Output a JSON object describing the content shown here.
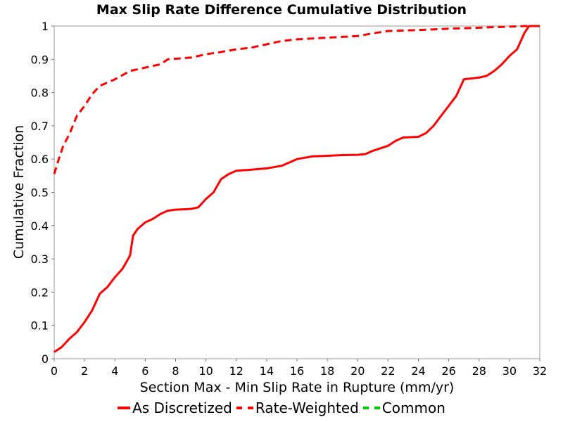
{
  "chart_data": {
    "type": "line",
    "title": "Max Slip Rate Difference Cumulative Distribution",
    "xlabel": "Section Max - Min Slip Rate in Rupture (mm/yr)",
    "ylabel": "Cumulative Fraction",
    "xlim": [
      0,
      32
    ],
    "ylim": [
      0,
      1
    ],
    "xticks": [
      "0",
      "2",
      "4",
      "6",
      "8",
      "10",
      "12",
      "14",
      "16",
      "18",
      "20",
      "22",
      "24",
      "26",
      "28",
      "30",
      "32"
    ],
    "yticks": [
      "0",
      "0.1",
      "0.2",
      "0.3",
      "0.4",
      "0.5",
      "0.6",
      "0.7",
      "0.8",
      "0.9",
      "1"
    ],
    "grid": false,
    "legend_position": "bottom",
    "series": [
      {
        "name": "As Discretized",
        "style": "solid",
        "color": "#ff0000",
        "points": [
          [
            0,
            0.02
          ],
          [
            0.5,
            0.035
          ],
          [
            1,
            0.06
          ],
          [
            1.5,
            0.08
          ],
          [
            2,
            0.11
          ],
          [
            2.5,
            0.145
          ],
          [
            3,
            0.195
          ],
          [
            3.5,
            0.215
          ],
          [
            4,
            0.245
          ],
          [
            4.5,
            0.27
          ],
          [
            5,
            0.31
          ],
          [
            5.2,
            0.37
          ],
          [
            5.5,
            0.39
          ],
          [
            6,
            0.41
          ],
          [
            6.5,
            0.42
          ],
          [
            7,
            0.435
          ],
          [
            7.5,
            0.445
          ],
          [
            8,
            0.448
          ],
          [
            9,
            0.45
          ],
          [
            9.5,
            0.455
          ],
          [
            10,
            0.48
          ],
          [
            10.5,
            0.5
          ],
          [
            11,
            0.54
          ],
          [
            11.5,
            0.555
          ],
          [
            12,
            0.565
          ],
          [
            13,
            0.568
          ],
          [
            14,
            0.572
          ],
          [
            15,
            0.58
          ],
          [
            16,
            0.6
          ],
          [
            17,
            0.608
          ],
          [
            18,
            0.61
          ],
          [
            19,
            0.612
          ],
          [
            20,
            0.613
          ],
          [
            20.5,
            0.615
          ],
          [
            21,
            0.625
          ],
          [
            22,
            0.64
          ],
          [
            22.5,
            0.655
          ],
          [
            23,
            0.665
          ],
          [
            24,
            0.667
          ],
          [
            24.5,
            0.678
          ],
          [
            25,
            0.7
          ],
          [
            25.5,
            0.73
          ],
          [
            26,
            0.76
          ],
          [
            26.5,
            0.79
          ],
          [
            27,
            0.84
          ],
          [
            28,
            0.845
          ],
          [
            28.5,
            0.85
          ],
          [
            29,
            0.865
          ],
          [
            29.5,
            0.885
          ],
          [
            30,
            0.91
          ],
          [
            30.5,
            0.93
          ],
          [
            31,
            0.98
          ],
          [
            31.3,
            1
          ],
          [
            32,
            1
          ]
        ]
      },
      {
        "name": "Rate-Weighted",
        "style": "dashed",
        "color": "#ff0000",
        "points": [
          [
            0,
            0.555
          ],
          [
            0.3,
            0.6
          ],
          [
            0.6,
            0.64
          ],
          [
            1,
            0.675
          ],
          [
            1.5,
            0.73
          ],
          [
            2,
            0.76
          ],
          [
            2.5,
            0.795
          ],
          [
            3,
            0.82
          ],
          [
            4,
            0.84
          ],
          [
            5,
            0.865
          ],
          [
            6,
            0.875
          ],
          [
            7,
            0.885
          ],
          [
            7.5,
            0.9
          ],
          [
            9,
            0.905
          ],
          [
            10,
            0.915
          ],
          [
            11,
            0.922
          ],
          [
            12,
            0.93
          ],
          [
            13,
            0.935
          ],
          [
            14,
            0.945
          ],
          [
            15,
            0.955
          ],
          [
            16,
            0.96
          ],
          [
            18,
            0.965
          ],
          [
            20,
            0.97
          ],
          [
            21,
            0.978
          ],
          [
            22,
            0.985
          ],
          [
            24,
            0.988
          ],
          [
            26,
            0.992
          ],
          [
            28,
            0.995
          ],
          [
            30,
            0.998
          ],
          [
            31,
            1
          ],
          [
            32,
            1
          ]
        ]
      },
      {
        "name": "Common",
        "style": "dashed",
        "color": "#00cc00",
        "points": []
      }
    ]
  }
}
